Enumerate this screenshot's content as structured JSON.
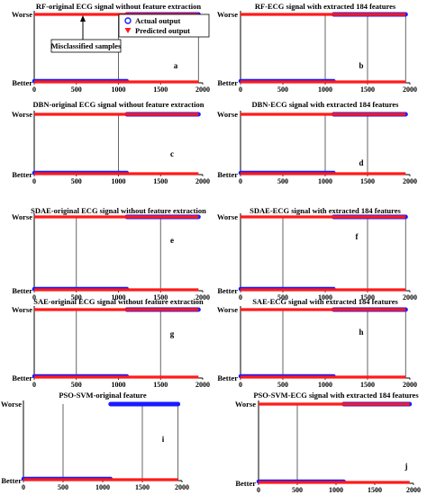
{
  "figure": {
    "legend": {
      "actual": "Actual output",
      "predicted": "Predicted output"
    },
    "annotation": "Misclassified samples",
    "y_top_label": "Worse",
    "y_bottom_label": "Better",
    "colors": {
      "actual": "#1a1aff",
      "predicted": "#ff1a1a",
      "axis": "#000000"
    }
  },
  "chart_data": [
    {
      "type": "scatter",
      "panel": "a",
      "title": "RF-original ECG signal without feature extraction",
      "xticks": [
        0,
        500,
        1000,
        1500,
        2000
      ],
      "xlim": [
        0,
        2000
      ],
      "yticks": [
        "Better",
        "Worse"
      ],
      "series": [
        {
          "name": "Actual output",
          "better_range": [
            0,
            1100
          ],
          "worse_range": [
            1100,
            1950
          ]
        },
        {
          "name": "Predicted output",
          "better_range": [
            0,
            1950
          ],
          "worse_range": [
            0,
            1950
          ]
        }
      ],
      "misclassified_x": [
        1000,
        1950
      ]
    },
    {
      "type": "scatter",
      "panel": "b",
      "title": "RF-ECG signal with extracted 184 features",
      "xticks": [
        0,
        500,
        1000,
        1500,
        2000
      ],
      "xlim": [
        0,
        2000
      ],
      "yticks": [
        "Better",
        "Worse"
      ],
      "series": [
        {
          "name": "Actual output",
          "better_range": [
            0,
            1100
          ],
          "worse_range": [
            1100,
            1950
          ]
        },
        {
          "name": "Predicted output",
          "better_range": [
            0,
            1950
          ],
          "worse_range": [
            0,
            1950
          ]
        }
      ],
      "misclassified_x": [
        1000,
        1500,
        1950
      ]
    },
    {
      "type": "scatter",
      "panel": "c",
      "title": "DBN-original ECG signal without feature extraction",
      "xticks": [
        0,
        500,
        1000,
        1500,
        2000
      ],
      "xlim": [
        0,
        2000
      ],
      "yticks": [
        "Better",
        "Worse"
      ],
      "series": [
        {
          "name": "Actual output",
          "better_range": [
            0,
            1100
          ],
          "worse_range": [
            1100,
            1950
          ]
        },
        {
          "name": "Predicted output",
          "better_range": [
            0,
            1950
          ],
          "worse_range": [
            0,
            1950
          ]
        }
      ],
      "misclassified_x": [
        1000
      ]
    },
    {
      "type": "scatter",
      "panel": "d",
      "title": "DBN-ECG signal with extracted 184 features",
      "xticks": [
        0,
        500,
        1000,
        1500,
        2000
      ],
      "xlim": [
        0,
        2000
      ],
      "yticks": [
        "Better",
        "Worse"
      ],
      "series": [
        {
          "name": "Actual output",
          "better_range": [
            0,
            1100
          ],
          "worse_range": [
            1100,
            1950
          ]
        },
        {
          "name": "Predicted output",
          "better_range": [
            0,
            1950
          ],
          "worse_range": [
            0,
            1950
          ]
        }
      ],
      "misclassified_x": [
        1000,
        1500
      ]
    },
    {
      "type": "scatter",
      "panel": "e",
      "title": "SDAE-original ECG signal without feature extraction",
      "xticks": [
        0,
        500,
        1000,
        1500,
        2000
      ],
      "xlim": [
        0,
        2000
      ],
      "yticks": [
        "Better",
        "Worse"
      ],
      "series": [
        {
          "name": "Actual output",
          "better_range": [
            0,
            1100
          ],
          "worse_range": [
            1100,
            1950
          ]
        },
        {
          "name": "Predicted output",
          "better_range": [
            0,
            1950
          ],
          "worse_range": [
            0,
            1950
          ]
        }
      ],
      "misclassified_x": [
        500,
        1500
      ]
    },
    {
      "type": "scatter",
      "panel": "f",
      "title": "SDAE-ECG signal with extracted 184 features",
      "xticks": [
        0,
        500,
        1000,
        1500,
        2000
      ],
      "xlim": [
        0,
        2000
      ],
      "yticks": [
        "Better",
        "Worse"
      ],
      "series": [
        {
          "name": "Actual output",
          "better_range": [
            0,
            1100
          ],
          "worse_range": [
            1100,
            1950
          ]
        },
        {
          "name": "Predicted output",
          "better_range": [
            0,
            1950
          ],
          "worse_range": [
            0,
            1950
          ]
        }
      ],
      "misclassified_x": [
        500,
        1500,
        1950
      ]
    },
    {
      "type": "scatter",
      "panel": "g",
      "title": "SAE-original ECG signal without feature extraction",
      "xticks": [
        0,
        500,
        1000,
        1500,
        2000
      ],
      "xlim": [
        0,
        2000
      ],
      "yticks": [
        "Better",
        "Worse"
      ],
      "series": [
        {
          "name": "Actual output",
          "better_range": [
            0,
            1100
          ],
          "worse_range": [
            1100,
            1950
          ]
        },
        {
          "name": "Predicted output",
          "better_range": [
            0,
            1950
          ],
          "worse_range": [
            0,
            1950
          ]
        }
      ],
      "misclassified_x": [
        500,
        1500
      ]
    },
    {
      "type": "scatter",
      "panel": "h",
      "title": "SAE-ECG signal with extracted 184 features",
      "xticks": [
        0,
        500,
        1000,
        1500,
        2000
      ],
      "xlim": [
        0,
        2000
      ],
      "yticks": [
        "Better",
        "Worse"
      ],
      "series": [
        {
          "name": "Actual output",
          "better_range": [
            0,
            1100
          ],
          "worse_range": [
            1100,
            1950
          ]
        },
        {
          "name": "Predicted output",
          "better_range": [
            0,
            1950
          ],
          "worse_range": [
            0,
            1950
          ]
        }
      ],
      "misclassified_x": [
        500,
        1500,
        1950
      ]
    },
    {
      "type": "scatter",
      "panel": "i",
      "title": "PSO-SVM-original feature",
      "xticks": [
        0,
        500,
        1000,
        1500,
        2000
      ],
      "xlim": [
        0,
        2000
      ],
      "yticks": [
        "Better",
        "Worse"
      ],
      "series": [
        {
          "name": "Actual output",
          "better_range": [
            0,
            1100
          ],
          "worse_range": [
            1100,
            1950
          ]
        },
        {
          "name": "Predicted output",
          "better_range": [
            0,
            1950
          ],
          "worse_range": []
        }
      ],
      "misclassified_x": [
        500,
        1500,
        1950
      ]
    },
    {
      "type": "scatter",
      "panel": "j",
      "title": "PSO-SVM-ECG signal with extracted 184 features",
      "xticks": [
        0,
        500,
        1000,
        1500,
        2000
      ],
      "xlim": [
        0,
        2000
      ],
      "yticks": [
        "Better",
        "Worse"
      ],
      "series": [
        {
          "name": "Actual output",
          "better_range": [
            0,
            1100
          ],
          "worse_range": [
            1100,
            1950
          ]
        },
        {
          "name": "Predicted output",
          "better_range": [
            0,
            1950
          ],
          "worse_range": [
            0,
            1950
          ]
        }
      ],
      "misclassified_x": [
        500
      ]
    }
  ]
}
